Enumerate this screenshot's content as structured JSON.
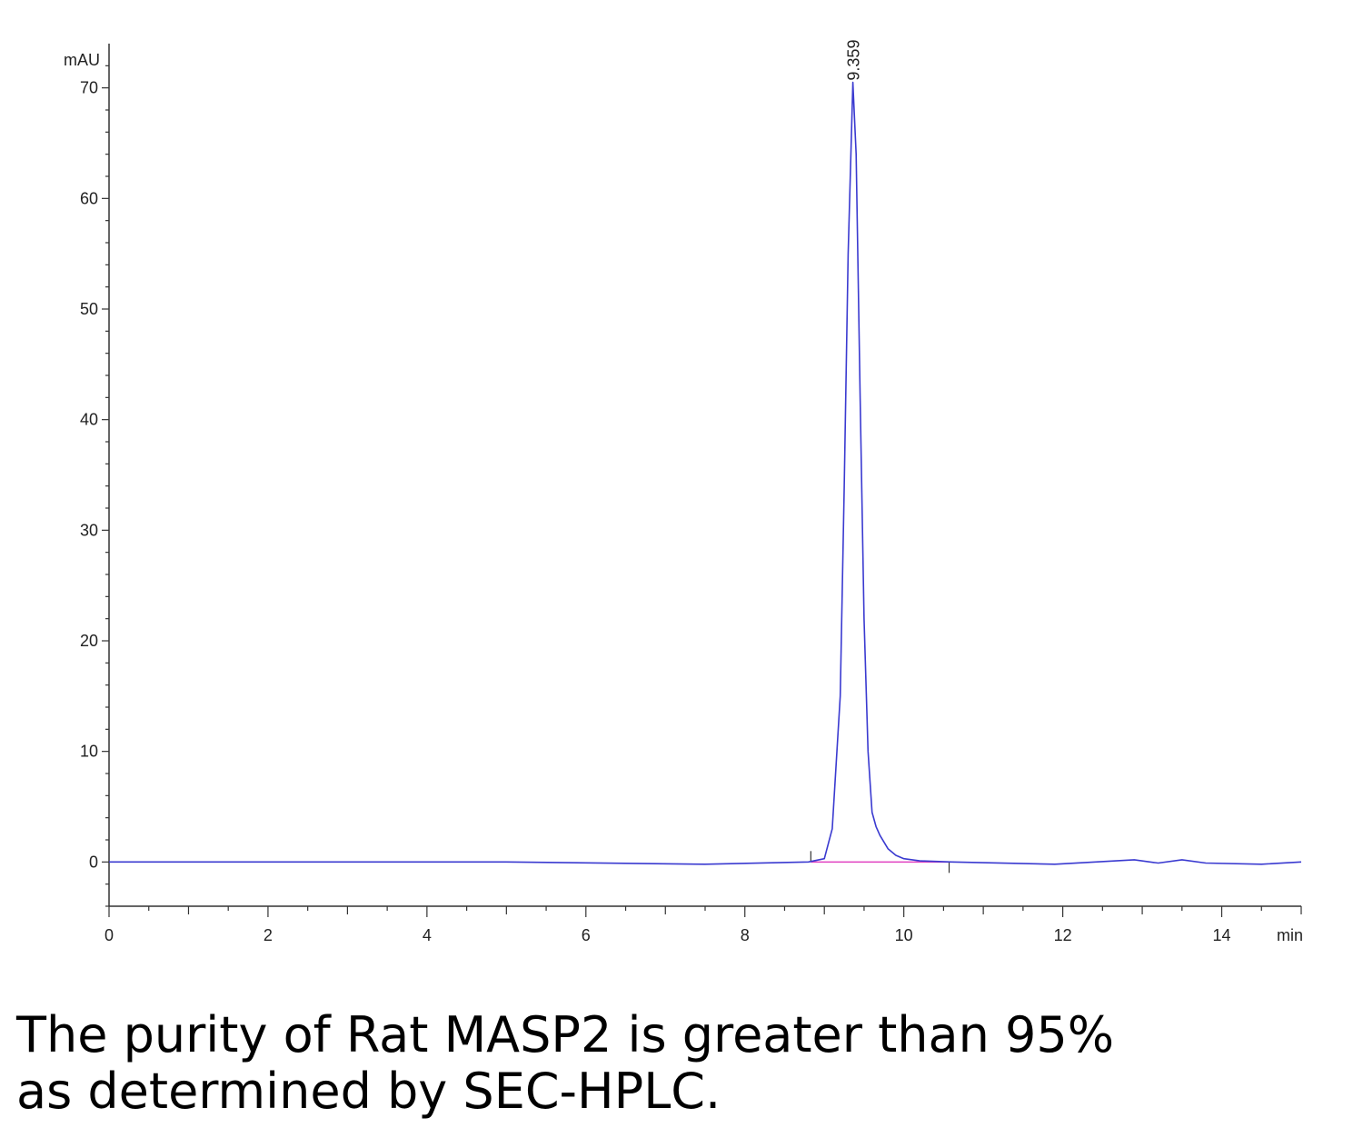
{
  "chart_data": {
    "type": "line",
    "xlabel": "min",
    "ylabel": "mAU",
    "xlim": [
      0,
      15
    ],
    "ylim": [
      -4,
      74
    ],
    "x_ticks": [
      0,
      2,
      4,
      6,
      8,
      10,
      12,
      14
    ],
    "y_ticks": [
      0,
      10,
      20,
      30,
      40,
      50,
      60,
      70
    ],
    "grid": false,
    "legend": "none",
    "colors": {
      "trace": "#3a3ad0",
      "baseline": "#e040c0",
      "axis": "#333333"
    },
    "peak_annotation": {
      "label": "9.359",
      "x": 9.359,
      "y": 70.5
    },
    "integration_marks": [
      8.83,
      10.57
    ],
    "integration_baseline": {
      "x": [
        8.83,
        10.57
      ],
      "y": [
        0,
        0
      ]
    },
    "series": [
      {
        "x": [
          0,
          5,
          7.5,
          8.8,
          9.0,
          9.1,
          9.2,
          9.25,
          9.3,
          9.359,
          9.4,
          9.45,
          9.5,
          9.55,
          9.6,
          9.65,
          9.7,
          9.8,
          9.9,
          10.0,
          10.2,
          10.6,
          11.9,
          12.9,
          13.2,
          13.5,
          13.8,
          14.5,
          15
        ],
        "y": [
          0,
          0,
          -0.2,
          0,
          0.3,
          3,
          15,
          34,
          55,
          70.5,
          64,
          42,
          22,
          10,
          4.5,
          3.2,
          2.4,
          1.2,
          0.6,
          0.3,
          0.1,
          0,
          -0.2,
          0.2,
          -0.1,
          0.2,
          -0.1,
          -0.2,
          0
        ]
      }
    ]
  },
  "caption": {
    "line1": "The purity of Rat MASP2 is greater than 95%",
    "line2": "as determined by SEC-HPLC."
  }
}
